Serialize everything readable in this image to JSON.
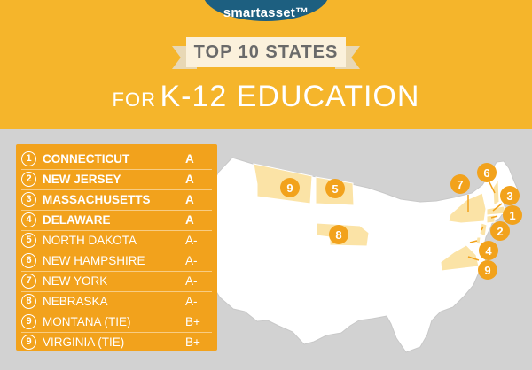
{
  "brand": {
    "logo_text": "smartasset™"
  },
  "title": {
    "ribbon": "TOP 10 STATES",
    "subtitle_small": "FOR",
    "subtitle_large": "K-12 EDUCATION"
  },
  "rankings": [
    {
      "rank": "1",
      "state": "CONNECTICUT",
      "grade": "A",
      "bold": true
    },
    {
      "rank": "2",
      "state": "NEW JERSEY",
      "grade": "A",
      "bold": true
    },
    {
      "rank": "3",
      "state": "MASSACHUSETTS",
      "grade": "A",
      "bold": true
    },
    {
      "rank": "4",
      "state": "DELAWARE",
      "grade": "A",
      "bold": true
    },
    {
      "rank": "5",
      "state": "NORTH DAKOTA",
      "grade": "A-",
      "bold": false
    },
    {
      "rank": "6",
      "state": "NEW HAMPSHIRE",
      "grade": "A-",
      "bold": false
    },
    {
      "rank": "7",
      "state": "NEW YORK",
      "grade": "A-",
      "bold": false
    },
    {
      "rank": "8",
      "state": "NEBRASKA",
      "grade": "A-",
      "bold": false
    },
    {
      "rank": "9",
      "state": "MONTANA (TIE)",
      "grade": "B+",
      "bold": false
    },
    {
      "rank": "9",
      "state": "VIRGINIA (TIE)",
      "grade": "B+",
      "bold": false
    }
  ],
  "map_markers": [
    "9",
    "5",
    "8",
    "7",
    "6",
    "3",
    "1",
    "2",
    "4",
    "9"
  ],
  "colors": {
    "header_bg": "#f5b52b",
    "panel_bg": "#f2a21c",
    "map_bg": "#d2d2d2",
    "state_fill": "#ffffff",
    "highlight_fill": "#fbe3a6",
    "marker_fill": "#f2a21c",
    "logo_bg": "#1d5f80"
  }
}
